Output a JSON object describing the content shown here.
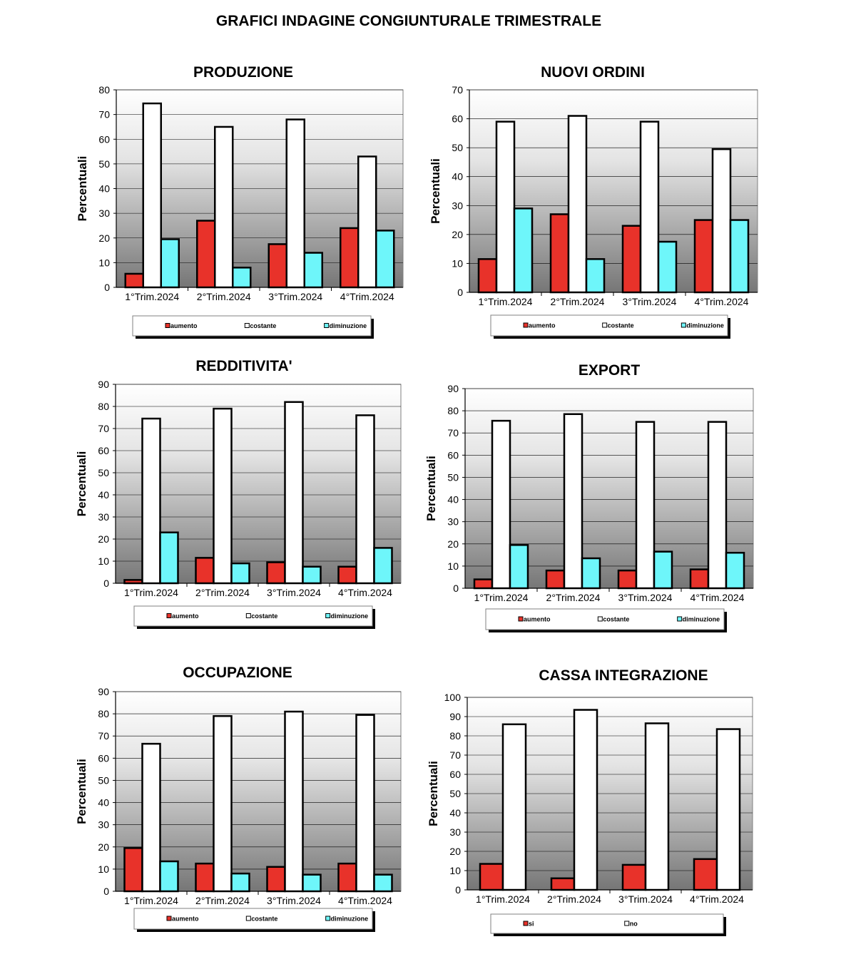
{
  "page_title": "GRAFICI INDAGINE CONGIUNTURALE TRIMESTRALE",
  "colors": {
    "aumento": "#E8322A",
    "costante": "#FFFFFF",
    "diminuzione": "#6EF6FA",
    "si": "#E8322A",
    "no": "#FFFFFF"
  },
  "chart_data": [
    {
      "id": "produzione",
      "type": "bar",
      "title": "PRODUZIONE",
      "xlabel": "",
      "ylabel": "Percentuali",
      "ylim": [
        0,
        80
      ],
      "yticks": [
        0,
        10,
        20,
        30,
        40,
        50,
        60,
        70,
        80
      ],
      "grid": true,
      "legend": "bottom",
      "categories": [
        "1°Trim.2024",
        "2°Trim.2024",
        "3°Trim.2024",
        "4°Trim.2024"
      ],
      "series": [
        {
          "name": "aumento",
          "color": "#E8322A",
          "values": [
            5.5,
            27,
            17.5,
            24
          ]
        },
        {
          "name": "costante",
          "color": "#FFFFFF",
          "values": [
            74.5,
            65,
            68,
            53
          ]
        },
        {
          "name": "diminuzione",
          "color": "#6EF6FA",
          "values": [
            19.5,
            8,
            14,
            23
          ]
        }
      ]
    },
    {
      "id": "nuovi-ordini",
      "type": "bar",
      "title": "NUOVI ORDINI",
      "xlabel": "",
      "ylabel": "Percentuali",
      "ylim": [
        0,
        70
      ],
      "yticks": [
        0,
        10,
        20,
        30,
        40,
        50,
        60,
        70
      ],
      "grid": true,
      "legend": "bottom",
      "categories": [
        "1°Trim.2024",
        "2°Trim.2024",
        "3°Trim.2024",
        "4°Trim.2024"
      ],
      "series": [
        {
          "name": "aumento",
          "color": "#E8322A",
          "values": [
            11.5,
            27,
            23,
            25
          ]
        },
        {
          "name": "costante",
          "color": "#FFFFFF",
          "values": [
            59,
            61,
            59,
            49.5
          ]
        },
        {
          "name": "diminuzione",
          "color": "#6EF6FA",
          "values": [
            29,
            11.5,
            17.5,
            25
          ]
        }
      ]
    },
    {
      "id": "redditivita",
      "type": "bar",
      "title": "REDDITIVITA'",
      "xlabel": "",
      "ylabel": "Percentuali",
      "ylim": [
        0,
        90
      ],
      "yticks": [
        0,
        10,
        20,
        30,
        40,
        50,
        60,
        70,
        80,
        90
      ],
      "grid": true,
      "legend": "bottom",
      "categories": [
        "1°Trim.2024",
        "2°Trim.2024",
        "3°Trim.2024",
        "4°Trim.2024"
      ],
      "series": [
        {
          "name": "aumento",
          "color": "#E8322A",
          "values": [
            1.5,
            11.5,
            9.5,
            7.5
          ]
        },
        {
          "name": "costante",
          "color": "#FFFFFF",
          "values": [
            74.5,
            79,
            82,
            76
          ]
        },
        {
          "name": "diminuzione",
          "color": "#6EF6FA",
          "values": [
            23,
            9,
            7.5,
            16
          ]
        }
      ]
    },
    {
      "id": "export",
      "type": "bar",
      "title": "EXPORT",
      "xlabel": "",
      "ylabel": "Percentuali",
      "ylim": [
        0,
        90
      ],
      "yticks": [
        0,
        10,
        20,
        30,
        40,
        50,
        60,
        70,
        80,
        90
      ],
      "grid": true,
      "legend": "bottom",
      "categories": [
        "1°Trim.2024",
        "2°Trim.2024",
        "3°Trim.2024",
        "4°Trim.2024"
      ],
      "series": [
        {
          "name": "aumento",
          "color": "#E8322A",
          "values": [
            4,
            8,
            8,
            8.5
          ]
        },
        {
          "name": "costante",
          "color": "#FFFFFF",
          "values": [
            75.5,
            78.5,
            75,
            75
          ]
        },
        {
          "name": "diminuzione",
          "color": "#6EF6FA",
          "values": [
            19.5,
            13.5,
            16.5,
            16
          ]
        }
      ]
    },
    {
      "id": "occupazione",
      "type": "bar",
      "title": "OCCUPAZIONE",
      "xlabel": "",
      "ylabel": "Percentuali",
      "ylim": [
        0,
        90
      ],
      "yticks": [
        0,
        10,
        20,
        30,
        40,
        50,
        60,
        70,
        80,
        90
      ],
      "grid": true,
      "legend": "bottom",
      "categories": [
        "1°Trim.2024",
        "2°Trim.2024",
        "3°Trim.2024",
        "4°Trim.2024"
      ],
      "series": [
        {
          "name": "aumento",
          "color": "#E8322A",
          "values": [
            19.5,
            12.5,
            11,
            12.5
          ]
        },
        {
          "name": "costante",
          "color": "#FFFFFF",
          "values": [
            66.5,
            79,
            81,
            79.5
          ]
        },
        {
          "name": "diminuzione",
          "color": "#6EF6FA",
          "values": [
            13.5,
            8,
            7.5,
            7.5
          ]
        }
      ]
    },
    {
      "id": "cassa-integrazione",
      "type": "bar",
      "title": "CASSA INTEGRAZIONE",
      "xlabel": "",
      "ylabel": "Percentuali",
      "ylim": [
        0,
        100
      ],
      "yticks": [
        0,
        10,
        20,
        30,
        40,
        50,
        60,
        70,
        80,
        90,
        100
      ],
      "grid": true,
      "legend": "bottom",
      "categories": [
        "1°Trim.2024",
        "2°Trim.2024",
        "3°Trim.2024",
        "4°Trim.2024"
      ],
      "series": [
        {
          "name": "si",
          "color": "#E8322A",
          "values": [
            13.5,
            6,
            13,
            16
          ]
        },
        {
          "name": "no",
          "color": "#FFFFFF",
          "values": [
            86,
            93.5,
            86.5,
            83.5
          ]
        }
      ]
    }
  ]
}
